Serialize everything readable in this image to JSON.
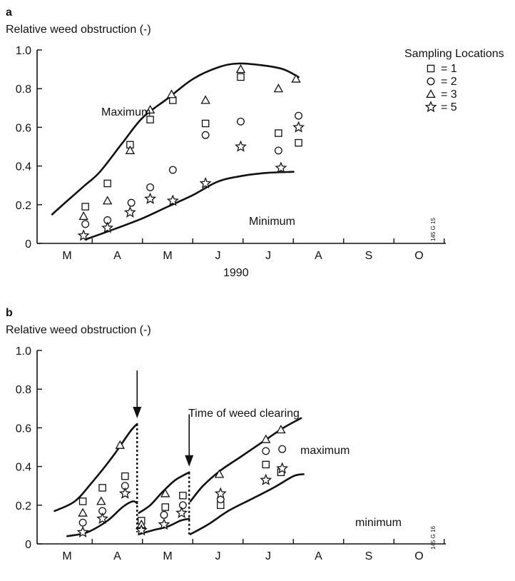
{
  "chart_data": [
    {
      "panel": "a",
      "type": "scatter",
      "ylabel": "Relative weed obstruction (-)",
      "xlabel": "1990",
      "ylim": [
        0,
        1.0
      ],
      "yticks": [
        "0",
        "0.2",
        "0.4",
        "0.6",
        "0.8",
        "1.0"
      ],
      "months": [
        "M",
        "A",
        "M",
        "J",
        "J",
        "A",
        "S",
        "O"
      ],
      "stamp": "145 G 15",
      "legend": {
        "title": "Sampling Locations",
        "placement": "top-right",
        "entries": [
          {
            "marker": "square",
            "label": "= 1"
          },
          {
            "marker": "circle",
            "label": "= 2"
          },
          {
            "marker": "triangle",
            "label": "= 3"
          },
          {
            "marker": "star",
            "label": "= 5"
          }
        ]
      },
      "series": [
        {
          "marker": "square",
          "points": [
            [
              2.72,
              0.19
            ],
            [
              3.6,
              0.31
            ],
            [
              4.5,
              0.51
            ],
            [
              5.3,
              0.64
            ],
            [
              6.2,
              0.74
            ],
            [
              7.5,
              0.62
            ],
            [
              8.9,
              0.86
            ],
            [
              10.4,
              0.57
            ],
            [
              11.2,
              0.52
            ]
          ]
        },
        {
          "marker": "circle",
          "points": [
            [
              2.72,
              0.1
            ],
            [
              3.6,
              0.12
            ],
            [
              4.55,
              0.21
            ],
            [
              5.3,
              0.29
            ],
            [
              6.2,
              0.38
            ],
            [
              7.5,
              0.56
            ],
            [
              8.9,
              0.63
            ],
            [
              10.4,
              0.48
            ],
            [
              11.2,
              0.66
            ]
          ]
        },
        {
          "marker": "triangle",
          "points": [
            [
              2.65,
              0.14
            ],
            [
              3.6,
              0.22
            ],
            [
              4.5,
              0.48
            ],
            [
              5.3,
              0.69
            ],
            [
              6.15,
              0.77
            ],
            [
              7.5,
              0.74
            ],
            [
              8.9,
              0.9
            ],
            [
              10.4,
              0.8
            ],
            [
              11.1,
              0.85
            ]
          ]
        },
        {
          "marker": "star",
          "points": [
            [
              2.65,
              0.04
            ],
            [
              3.6,
              0.08
            ],
            [
              4.5,
              0.16
            ],
            [
              5.3,
              0.23
            ],
            [
              6.2,
              0.22
            ],
            [
              7.5,
              0.31
            ],
            [
              8.9,
              0.5
            ],
            [
              10.5,
              0.39
            ],
            [
              11.2,
              0.6
            ]
          ]
        }
      ],
      "curves": [
        {
          "label": "Maximum",
          "points": [
            [
              1.4,
              0.15
            ],
            [
              2.0,
              0.22
            ],
            [
              2.7,
              0.3
            ],
            [
              3.3,
              0.37
            ],
            [
              4.2,
              0.52
            ],
            [
              5.0,
              0.65
            ],
            [
              6.0,
              0.75
            ],
            [
              7.0,
              0.85
            ],
            [
              8.0,
              0.91
            ],
            [
              8.8,
              0.93
            ],
            [
              9.8,
              0.92
            ],
            [
              10.6,
              0.9
            ],
            [
              11.2,
              0.86
            ]
          ]
        },
        {
          "label": "Minimum",
          "points": [
            [
              2.72,
              0.02
            ],
            [
              4.0,
              0.08
            ],
            [
              5.0,
              0.13
            ],
            [
              6.0,
              0.19
            ],
            [
              7.0,
              0.25
            ],
            [
              8.0,
              0.32
            ],
            [
              9.0,
              0.35
            ],
            [
              10.0,
              0.365
            ],
            [
              11.0,
              0.37
            ]
          ]
        }
      ]
    },
    {
      "panel": "b",
      "type": "scatter",
      "ylabel": "Relative weed obstruction (-)",
      "ylim": [
        0,
        1.0
      ],
      "yticks": [
        "0",
        "0.2",
        "0.4",
        "0.6",
        "0.8",
        "1.0"
      ],
      "months": [
        "M",
        "A",
        "M",
        "J",
        "J",
        "A",
        "S",
        "O"
      ],
      "stamp": "145 G 16",
      "annotation": "Time of weed clearing",
      "clearings": [
        {
          "x": 4.78,
          "from": 0.62,
          "to": 0.06,
          "arrow_top": 1.0
        },
        {
          "x": 6.85,
          "from": 0.37,
          "to": 0.05,
          "arrow_top": 0.67
        }
      ],
      "series": [
        {
          "marker": "square",
          "points": [
            [
              2.62,
              0.22
            ],
            [
              3.4,
              0.29
            ],
            [
              4.3,
              0.35
            ],
            [
              4.95,
              0.12
            ],
            [
              5.9,
              0.19
            ],
            [
              6.6,
              0.25
            ],
            [
              8.1,
              0.2
            ],
            [
              9.9,
              0.41
            ],
            [
              10.5,
              0.37
            ]
          ]
        },
        {
          "marker": "circle",
          "points": [
            [
              2.62,
              0.11
            ],
            [
              3.4,
              0.17
            ],
            [
              4.3,
              0.3
            ],
            [
              4.95,
              0.08
            ],
            [
              5.85,
              0.15
            ],
            [
              6.6,
              0.2
            ],
            [
              8.1,
              0.23
            ],
            [
              9.9,
              0.48
            ],
            [
              10.55,
              0.49
            ]
          ]
        },
        {
          "marker": "triangle",
          "points": [
            [
              2.62,
              0.16
            ],
            [
              3.35,
              0.22
            ],
            [
              4.1,
              0.51
            ],
            [
              4.95,
              0.1
            ],
            [
              5.9,
              0.26
            ],
            [
              8.05,
              0.36
            ],
            [
              9.9,
              0.54
            ],
            [
              10.5,
              0.59
            ]
          ]
        },
        {
          "marker": "star",
          "points": [
            [
              2.62,
              0.06
            ],
            [
              3.4,
              0.13
            ],
            [
              4.3,
              0.26
            ],
            [
              4.95,
              0.07
            ],
            [
              5.85,
              0.1
            ],
            [
              6.55,
              0.16
            ],
            [
              8.1,
              0.26
            ],
            [
              9.9,
              0.33
            ],
            [
              10.55,
              0.39
            ]
          ]
        }
      ],
      "curves": [
        {
          "label": "maximum",
          "segments": [
            [
              [
                1.5,
                0.17
              ],
              [
                2.3,
                0.22
              ],
              [
                3.0,
                0.32
              ],
              [
                3.8,
                0.45
              ],
              [
                4.5,
                0.58
              ],
              [
                4.78,
                0.62
              ]
            ],
            [
              [
                4.85,
                0.16
              ],
              [
                5.3,
                0.2
              ],
              [
                5.8,
                0.27
              ],
              [
                6.3,
                0.33
              ],
              [
                6.85,
                0.37
              ]
            ],
            [
              [
                6.9,
                0.22
              ],
              [
                7.4,
                0.3
              ],
              [
                8.1,
                0.38
              ],
              [
                8.9,
                0.45
              ],
              [
                9.8,
                0.53
              ],
              [
                10.6,
                0.6
              ],
              [
                11.3,
                0.65
              ]
            ]
          ]
        },
        {
          "label": "minimum",
          "segments": [
            [
              [
                2.0,
                0.04
              ],
              [
                2.8,
                0.06
              ],
              [
                3.6,
                0.12
              ],
              [
                4.2,
                0.19
              ],
              [
                4.6,
                0.22
              ],
              [
                4.78,
                0.21
              ]
            ],
            [
              [
                4.85,
                0.05
              ],
              [
                5.4,
                0.07
              ],
              [
                6.0,
                0.09
              ],
              [
                6.5,
                0.12
              ],
              [
                6.85,
                0.13
              ]
            ],
            [
              [
                6.9,
                0.05
              ],
              [
                7.6,
                0.1
              ],
              [
                8.4,
                0.17
              ],
              [
                9.3,
                0.23
              ],
              [
                10.2,
                0.29
              ],
              [
                11.0,
                0.35
              ],
              [
                11.4,
                0.36
              ]
            ]
          ]
        }
      ]
    }
  ]
}
